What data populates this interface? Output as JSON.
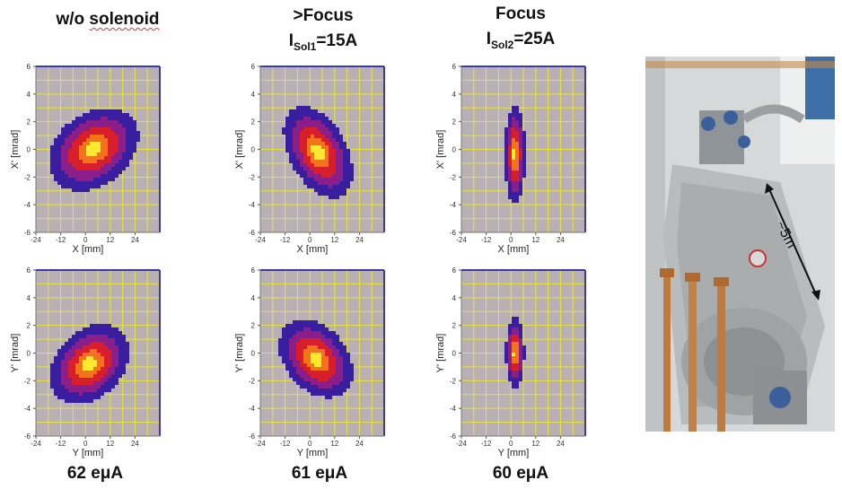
{
  "titles": {
    "col1": {
      "line1": "w/o ",
      "line1_underlined": "solenoid"
    },
    "col2": {
      "line1": ">Focus",
      "prefix": "I",
      "subscript": "Sol1",
      "suffix": "=15A"
    },
    "col3": {
      "line1": "Focus",
      "prefix": "I",
      "subscript": "Sol2",
      "suffix": "=25A"
    }
  },
  "currents": {
    "col1": "62 eμA",
    "col2": "61 eμA",
    "col3": "60 eμA"
  },
  "photo": {
    "label": "~5m"
  },
  "colors": {
    "background": "#b8b0b4",
    "grid": "#e8e33a",
    "axis_frame": "#3b3aa8",
    "cold": "#3a1ea0",
    "mid": "#d81e2a",
    "hot": "#ffe830"
  },
  "chart_data": [
    {
      "type": "heatmap",
      "id": "x-no-sol",
      "xlabel": "X [mm]",
      "ylabel": "X' [mrad]",
      "xlim": [
        -24,
        36
      ],
      "ylim": [
        -6,
        6
      ],
      "xticks": [
        -24,
        -12,
        0,
        12,
        24
      ],
      "yticks": [
        -6,
        -4,
        -2,
        0,
        2,
        4,
        6
      ],
      "grid": true,
      "blob": {
        "center": [
          4,
          0
        ],
        "semi_axes": [
          24,
          2.6
        ],
        "tilt_deg": 38
      }
    },
    {
      "type": "heatmap",
      "id": "x-sol1",
      "xlabel": "X [mm]",
      "ylabel": "X' [mrad]",
      "xlim": [
        -24,
        36
      ],
      "ylim": [
        -6,
        6
      ],
      "xticks": [
        -24,
        -12,
        0,
        12,
        24
      ],
      "yticks": [
        -6,
        -4,
        -2,
        0,
        2,
        4,
        6
      ],
      "grid": true,
      "blob": {
        "center": [
          4,
          -0.2
        ],
        "semi_axes": [
          14,
          3.6
        ],
        "tilt_deg": 28
      }
    },
    {
      "type": "heatmap",
      "id": "x-sol2",
      "xlabel": "X [mm]",
      "ylabel": "X' [mrad]",
      "xlim": [
        -24,
        36
      ],
      "ylim": [
        -6,
        6
      ],
      "xticks": [
        -24,
        -12,
        0,
        12,
        24
      ],
      "yticks": [
        -6,
        -4,
        -2,
        0,
        2,
        4,
        6
      ],
      "grid": true,
      "blob": {
        "center": [
          2,
          -0.4
        ],
        "semi_axes": [
          5,
          3.6
        ],
        "tilt_deg": 0
      }
    },
    {
      "type": "heatmap",
      "id": "y-no-sol",
      "xlabel": "Y [mm]",
      "ylabel": "Y' [mrad]",
      "xlim": [
        -24,
        36
      ],
      "ylim": [
        -6,
        6
      ],
      "xticks": [
        -24,
        -12,
        0,
        12,
        24
      ],
      "yticks": [
        -6,
        -4,
        -2,
        0,
        2,
        4,
        6
      ],
      "grid": true,
      "blob": {
        "center": [
          2,
          -0.8
        ],
        "semi_axes": [
          22,
          2.4
        ],
        "tilt_deg": 45
      }
    },
    {
      "type": "heatmap",
      "id": "y-sol1",
      "xlabel": "Y [mm]",
      "ylabel": "Y' [mrad]",
      "xlim": [
        -24,
        36
      ],
      "ylim": [
        -6,
        6
      ],
      "xticks": [
        -24,
        -12,
        0,
        12,
        24
      ],
      "yticks": [
        -6,
        -4,
        -2,
        0,
        2,
        4,
        6
      ],
      "grid": true,
      "blob": {
        "center": [
          3,
          -0.4
        ],
        "semi_axes": [
          15,
          3.2
        ],
        "tilt_deg": 40
      }
    },
    {
      "type": "heatmap",
      "id": "y-sol2",
      "xlabel": "Y [mm]",
      "ylabel": "Y' [mrad]",
      "xlim": [
        -24,
        36
      ],
      "ylim": [
        -6,
        6
      ],
      "xticks": [
        -24,
        -12,
        0,
        12,
        24
      ],
      "yticks": [
        -6,
        -4,
        -2,
        0,
        2,
        4,
        6
      ],
      "grid": true,
      "blob": {
        "center": [
          2,
          0
        ],
        "semi_axes": [
          4.5,
          2.6
        ],
        "tilt_deg": 0
      }
    }
  ]
}
